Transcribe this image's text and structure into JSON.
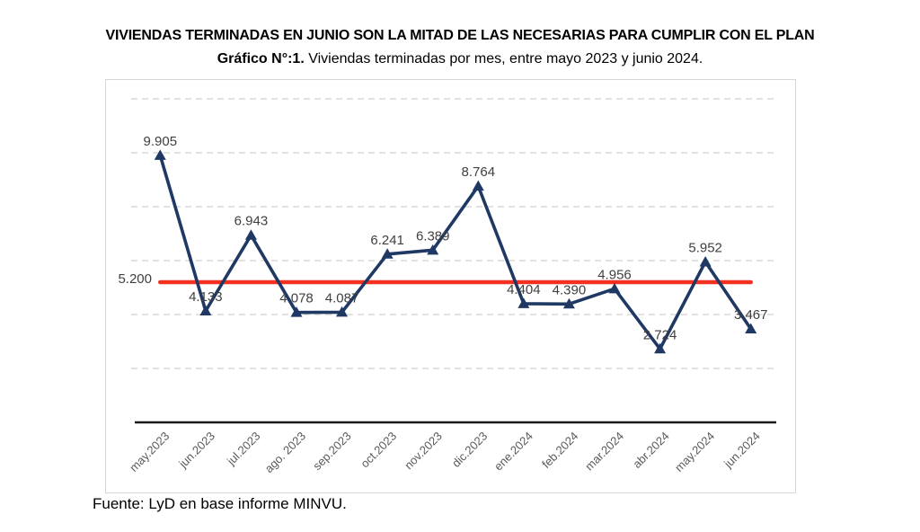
{
  "header": {
    "title": "VIVIENDAS TERMINADAS EN JUNIO SON LA MITAD DE LAS NECESARIAS PARA CUMPLIR CON EL PLAN",
    "subtitle_bold": "Gráfico N°:1.",
    "subtitle_rest": " Viviendas terminadas por mes, entre mayo 2023 y junio 2024."
  },
  "chart_data": {
    "type": "line",
    "title": "Viviendas terminadas por mes, entre mayo 2023 y junio 2024",
    "categories": [
      "may.2023",
      "jun.2023",
      "jul.2023",
      "ago. 2023",
      "sep.2023",
      "oct.2023",
      "nov.2023",
      "dic.2023",
      "ene.2024",
      "feb.2024",
      "mar.2024",
      "abr.2024",
      "may.2024",
      "jun.2024"
    ],
    "series": [
      {
        "name": "Viviendas terminadas",
        "values": [
          9905,
          4133,
          6943,
          4078,
          4087,
          6241,
          6389,
          8764,
          4404,
          4390,
          4956,
          2724,
          5952,
          3467
        ],
        "labels": [
          "9.905",
          "4.133",
          "6.943",
          "4.078",
          "4.087",
          "6.241",
          "6.389",
          "8.764",
          "4.404",
          "4.390",
          "4.956",
          "2.724",
          "5.952",
          "3.467"
        ],
        "color": "#1F3864",
        "marker": "triangle"
      }
    ],
    "reference_line": {
      "value": 5200,
      "label": "5.200",
      "color": "#F33121"
    },
    "ylim": [
      0,
      12800
    ],
    "gridlines": [
      2000,
      4000,
      6000,
      8000,
      10000,
      12000
    ],
    "grid_style": "dashed",
    "legend": "none",
    "xlabel": "",
    "ylabel": ""
  },
  "footer": {
    "source": "Fuente: LyD en base informe MINVU."
  },
  "colors": {
    "series_line": "#1F3864",
    "reference_line": "#F33121",
    "gridline": "#D9D9D9",
    "axis_line": "#1A1A1A",
    "axis_label": "#595959",
    "data_label": "#3F3F3F",
    "chart_border": "#D6D6D6"
  }
}
